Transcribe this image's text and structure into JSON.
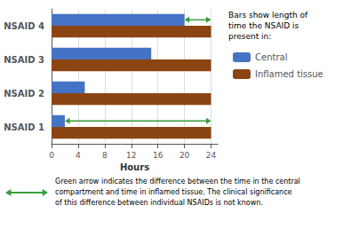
{
  "chart_data": {
    "type": "bar",
    "orientation": "horizontal",
    "xlabel": "Hours",
    "categories": [
      "NSAID 1",
      "NSAID 2",
      "NSAID 3",
      "NSAID 4"
    ],
    "series": [
      {
        "name": "Central",
        "color": "#4472C4",
        "values": [
          2,
          5,
          15,
          20
        ]
      },
      {
        "name": "Inflamed tissue",
        "color": "#8B4513",
        "values": [
          24,
          24,
          24,
          24
        ]
      }
    ],
    "xlim": [
      0,
      25
    ],
    "xticks": [
      0,
      4,
      8,
      12,
      16,
      20,
      24
    ],
    "grid": true,
    "legend": "right",
    "legend_title": [
      "Bars show length of",
      "time the NSAID is",
      "present in:"
    ],
    "arrows": [
      {
        "category": "NSAID 1",
        "series": "Central",
        "from": 2,
        "to": 24,
        "color": "#3a9e3a"
      },
      {
        "category": "NSAID 4",
        "series": "Central",
        "from": 20,
        "to": 24,
        "color": "#3a9e3a"
      }
    ],
    "footnote": [
      "Green arrow indicates the difference between the time in the central",
      "compartment and time in inflamed tissue. The clinical significance",
      "of this difference between individual NSAIDs is not known."
    ]
  }
}
